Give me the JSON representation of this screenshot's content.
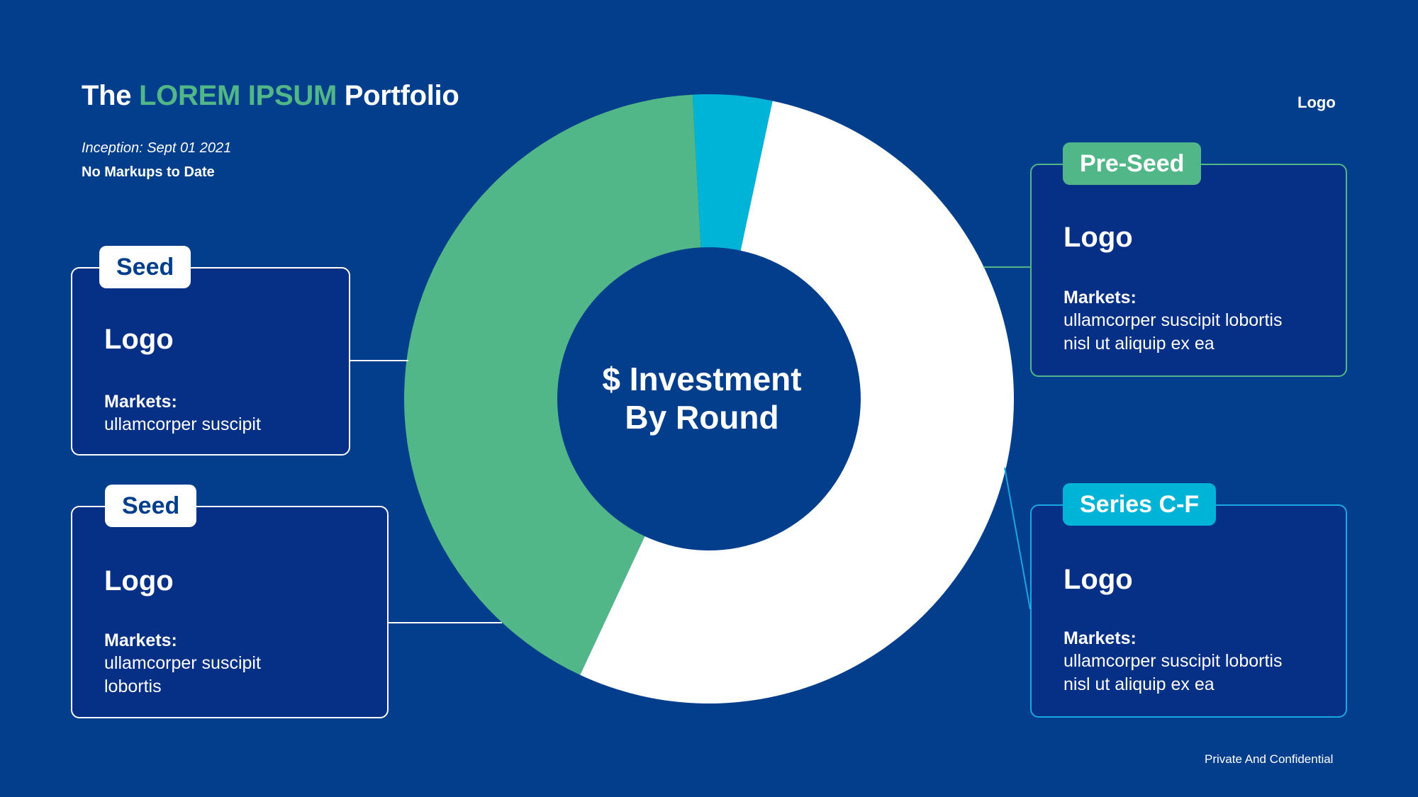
{
  "header": {
    "title_pre": "The ",
    "title_highlight": "LOREM IPSUM",
    "title_post": " Portfolio",
    "inception": "Inception: Sept  01 2021",
    "markups": "No Markups to Date",
    "logo": "Logo"
  },
  "footer": {
    "text": "Private And Confidential"
  },
  "colors": {
    "background": "#033E8C",
    "green": "#52B788",
    "cyan": "#00B4D8",
    "white": "#FFFFFF",
    "card_bg": "#062F86"
  },
  "chart_data": {
    "type": "pie",
    "variant": "donut",
    "center_label": [
      "$ Investment",
      "By Round"
    ],
    "slices": [
      {
        "color": "#52B788",
        "value": 42.2
      },
      {
        "color": "#00B4D8",
        "value": 4.2
      },
      {
        "color": "#FFFFFF",
        "value": 53.6
      }
    ]
  },
  "cards": [
    {
      "tag": "Seed",
      "logo": "Logo",
      "markets_label": "Markets:",
      "markets_lines": [
        "ullamcorper suscipit"
      ]
    },
    {
      "tag": "Seed",
      "logo": "Logo",
      "markets_label": "Markets:",
      "markets_lines": [
        "ullamcorper suscipit",
        "lobortis"
      ]
    },
    {
      "tag": "Pre-Seed",
      "logo": "Logo",
      "markets_label": "Markets:",
      "markets_lines": [
        "ullamcorper suscipit lobortis",
        "nisl ut aliquip ex ea"
      ]
    },
    {
      "tag": "Series C-F",
      "logo": "Logo",
      "markets_label": "Markets:",
      "markets_lines": [
        "ullamcorper suscipit lobortis",
        "nisl ut aliquip ex ea"
      ]
    }
  ]
}
